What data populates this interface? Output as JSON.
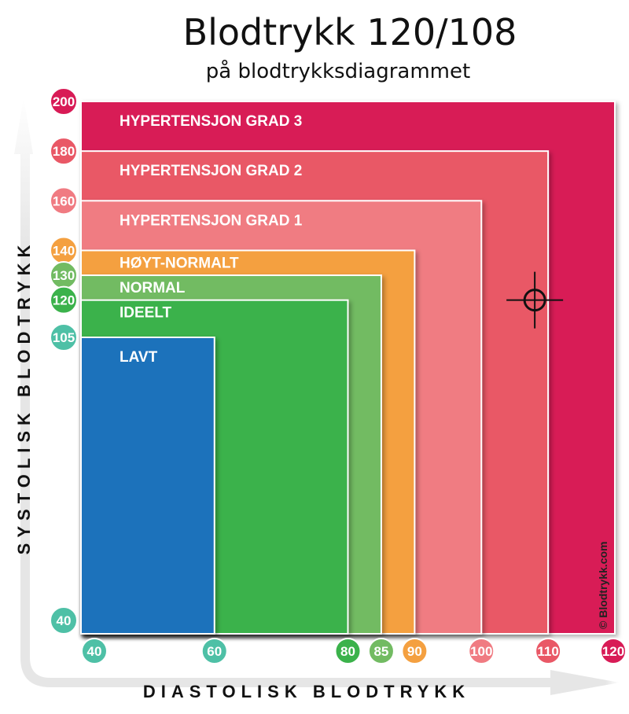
{
  "title": "Blodtrykk 120/108",
  "subtitle": "på blodtrykksdiagrammet",
  "chart_data": {
    "type": "nested-area",
    "xlabel": "DIASTOLISK BLODTRYKK",
    "ylabel": "SYSTOLISK BLODTRYKK",
    "xlim": [
      40,
      120
    ],
    "ylim": [
      40,
      200
    ],
    "zones": [
      {
        "name": "HYPERTENSJON GRAD 3",
        "diastolic_max": 120,
        "systolic_max": 200,
        "color": "#d81b56"
      },
      {
        "name": "HYPERTENSJON GRAD 2",
        "diastolic_max": 110,
        "systolic_max": 180,
        "color": "#e95866"
      },
      {
        "name": "HYPERTENSJON GRAD 1",
        "diastolic_max": 100,
        "systolic_max": 160,
        "color": "#f07b82"
      },
      {
        "name": "HØYT-NORMALT",
        "diastolic_max": 90,
        "systolic_max": 140,
        "color": "#f4a040"
      },
      {
        "name": "NORMAL",
        "diastolic_max": 85,
        "systolic_max": 130,
        "color": "#72bb62"
      },
      {
        "name": "IDEELT",
        "diastolic_max": 80,
        "systolic_max": 120,
        "color": "#3bb24b"
      },
      {
        "name": "LAVT",
        "diastolic_max": 60,
        "systolic_max": 105,
        "color": "#1a72bb"
      }
    ],
    "y_ticks": [
      {
        "value": 200,
        "label": "200",
        "color": "#d81b56"
      },
      {
        "value": 180,
        "label": "180",
        "color": "#e95866"
      },
      {
        "value": 160,
        "label": "160",
        "color": "#f07b82"
      },
      {
        "value": 140,
        "label": "140",
        "color": "#f4a040"
      },
      {
        "value": 130,
        "label": "130",
        "color": "#72bb62"
      },
      {
        "value": 120,
        "label": "120",
        "color": "#3bb24b"
      },
      {
        "value": 105,
        "label": "105",
        "color": "#4ec0a6"
      },
      {
        "value": 40,
        "label": "40",
        "color": "#4ec0a6"
      }
    ],
    "x_ticks": [
      {
        "value": 40,
        "label": "40",
        "color": "#4ec0a6"
      },
      {
        "value": 60,
        "label": "60",
        "color": "#4ec0a6"
      },
      {
        "value": 80,
        "label": "80",
        "color": "#3bb24b"
      },
      {
        "value": 85,
        "label": "85",
        "color": "#72bb62"
      },
      {
        "value": 90,
        "label": "90",
        "color": "#f4a040"
      },
      {
        "value": 100,
        "label": "100",
        "color": "#f07b82"
      },
      {
        "value": 110,
        "label": "110",
        "color": "#e95866"
      },
      {
        "value": 120,
        "label": "120",
        "color": "#d81b56"
      }
    ],
    "marker": {
      "systolic": 120,
      "diastolic": 108
    },
    "copyright": "© Blodtrykk.com"
  }
}
